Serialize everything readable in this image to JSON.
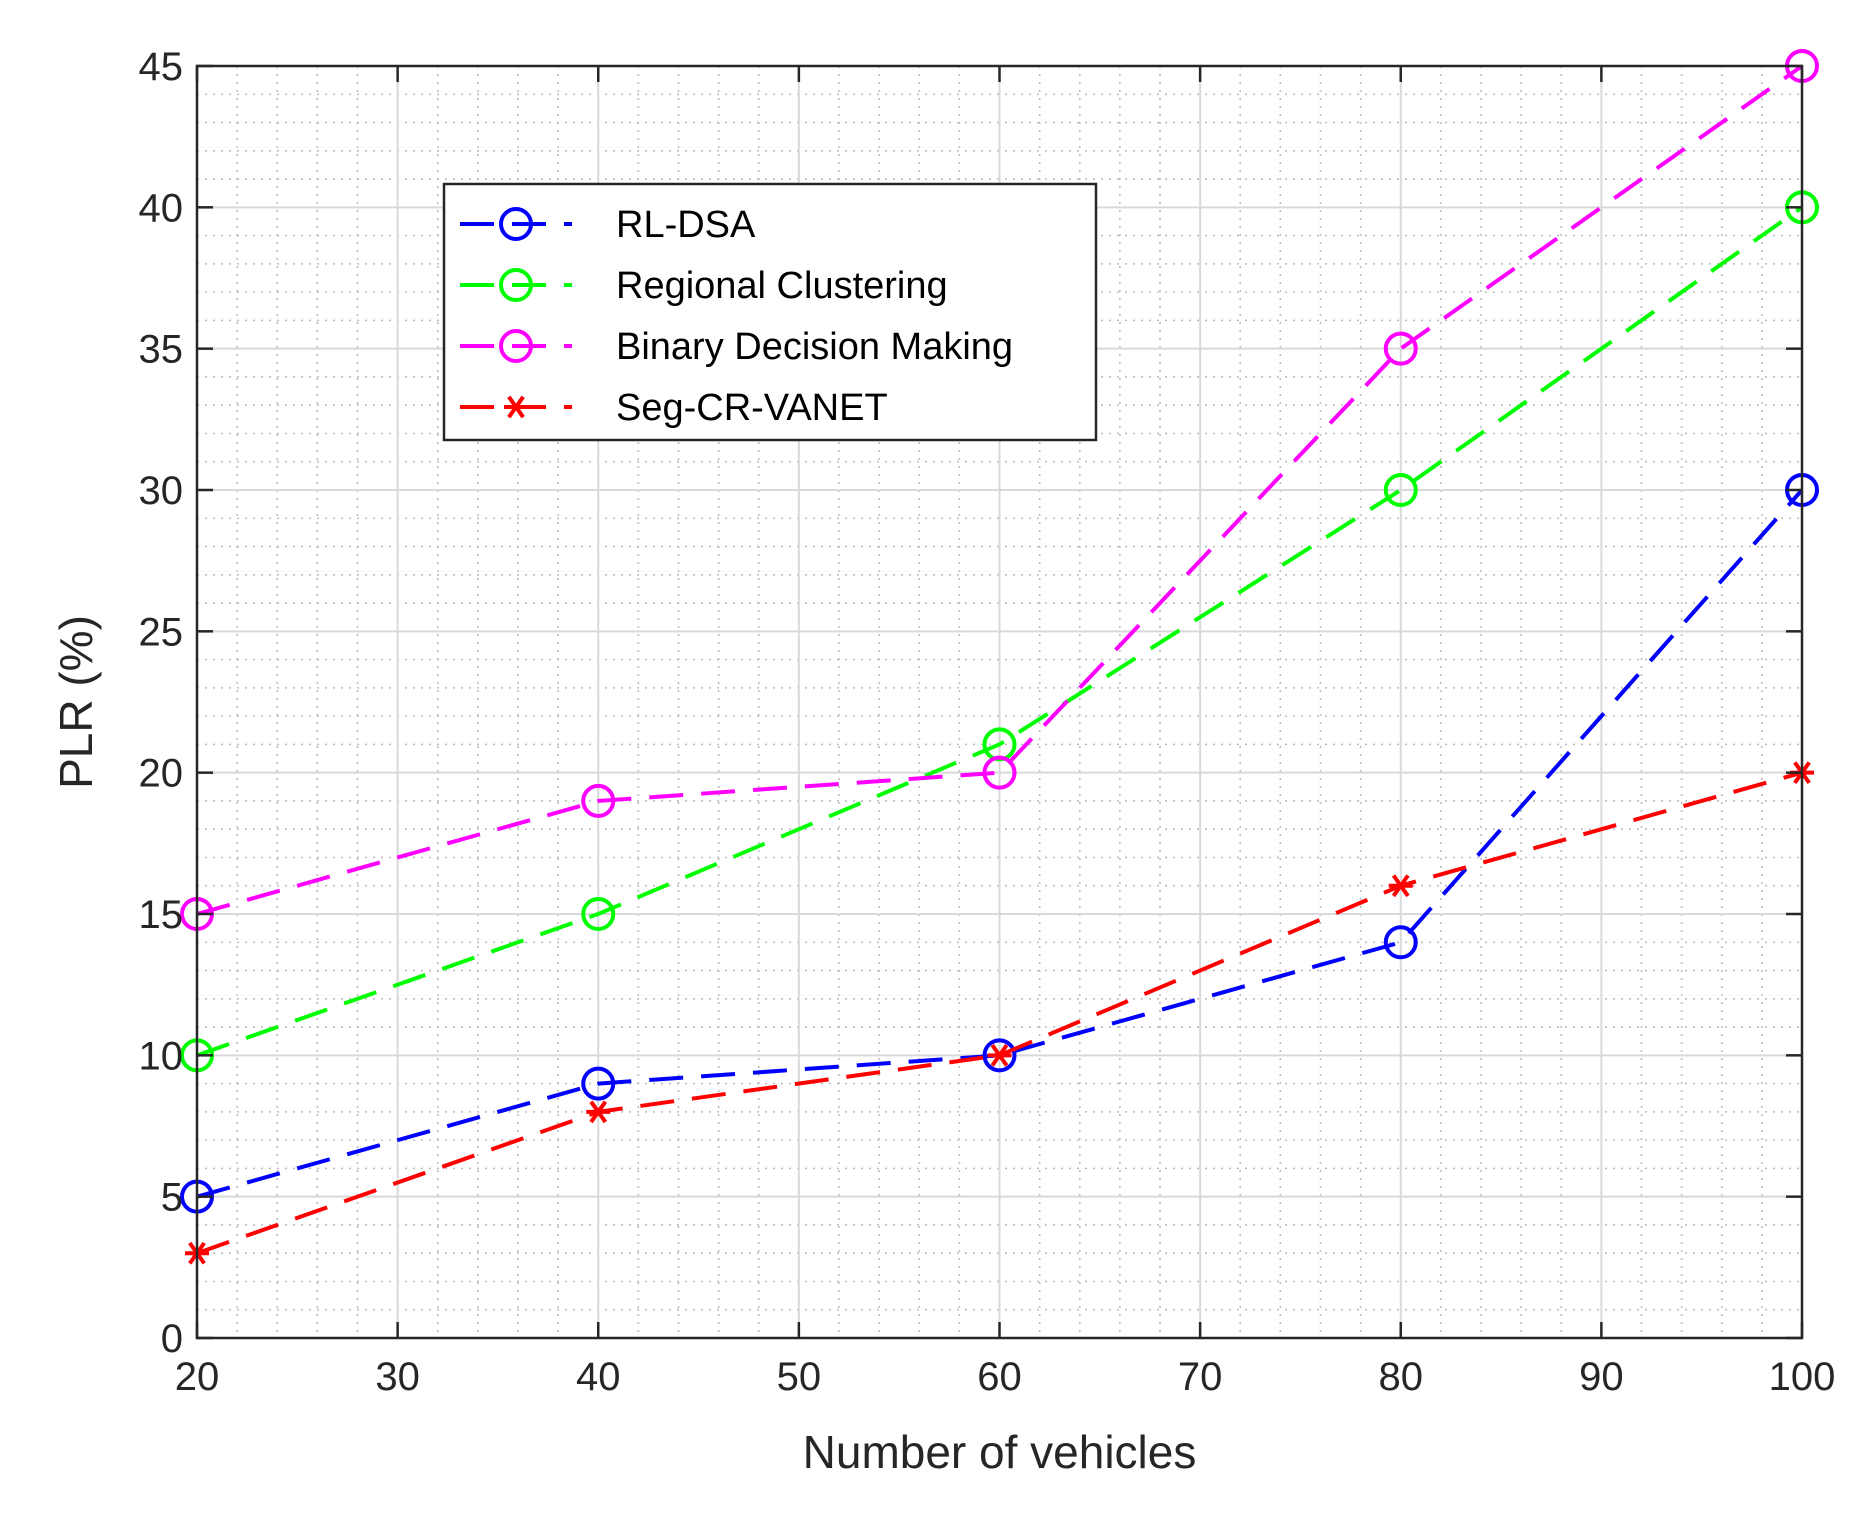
{
  "chart_data": {
    "type": "line",
    "title": "",
    "xlabel": "Number of vehicles",
    "ylabel": "PLR (%)",
    "xlim": [
      20,
      100
    ],
    "ylim": [
      0,
      45
    ],
    "xticks": [
      20,
      30,
      40,
      50,
      60,
      70,
      80,
      90,
      100
    ],
    "yticks": [
      0,
      5,
      10,
      15,
      20,
      25,
      30,
      35,
      40,
      45
    ],
    "x_minor_step": 2,
    "y_minor_step": 1,
    "grid": true,
    "legend_position": "top-left-inside",
    "x": [
      20,
      40,
      60,
      80,
      100
    ],
    "series": [
      {
        "name": "RL-DSA",
        "values": [
          5,
          9,
          10,
          14,
          30
        ],
        "color": "#0000FF",
        "marker": "circle"
      },
      {
        "name": "Regional Clustering",
        "values": [
          10,
          15,
          21,
          30,
          40
        ],
        "color": "#00FF00",
        "marker": "circle"
      },
      {
        "name": "Binary Decision Making",
        "values": [
          15,
          19,
          20,
          35,
          45
        ],
        "color": "#FF00FF",
        "marker": "circle"
      },
      {
        "name": "Seg-CR-VANET",
        "values": [
          3,
          8,
          10,
          16,
          20
        ],
        "color": "#FF0000",
        "marker": "asterisk"
      }
    ]
  }
}
